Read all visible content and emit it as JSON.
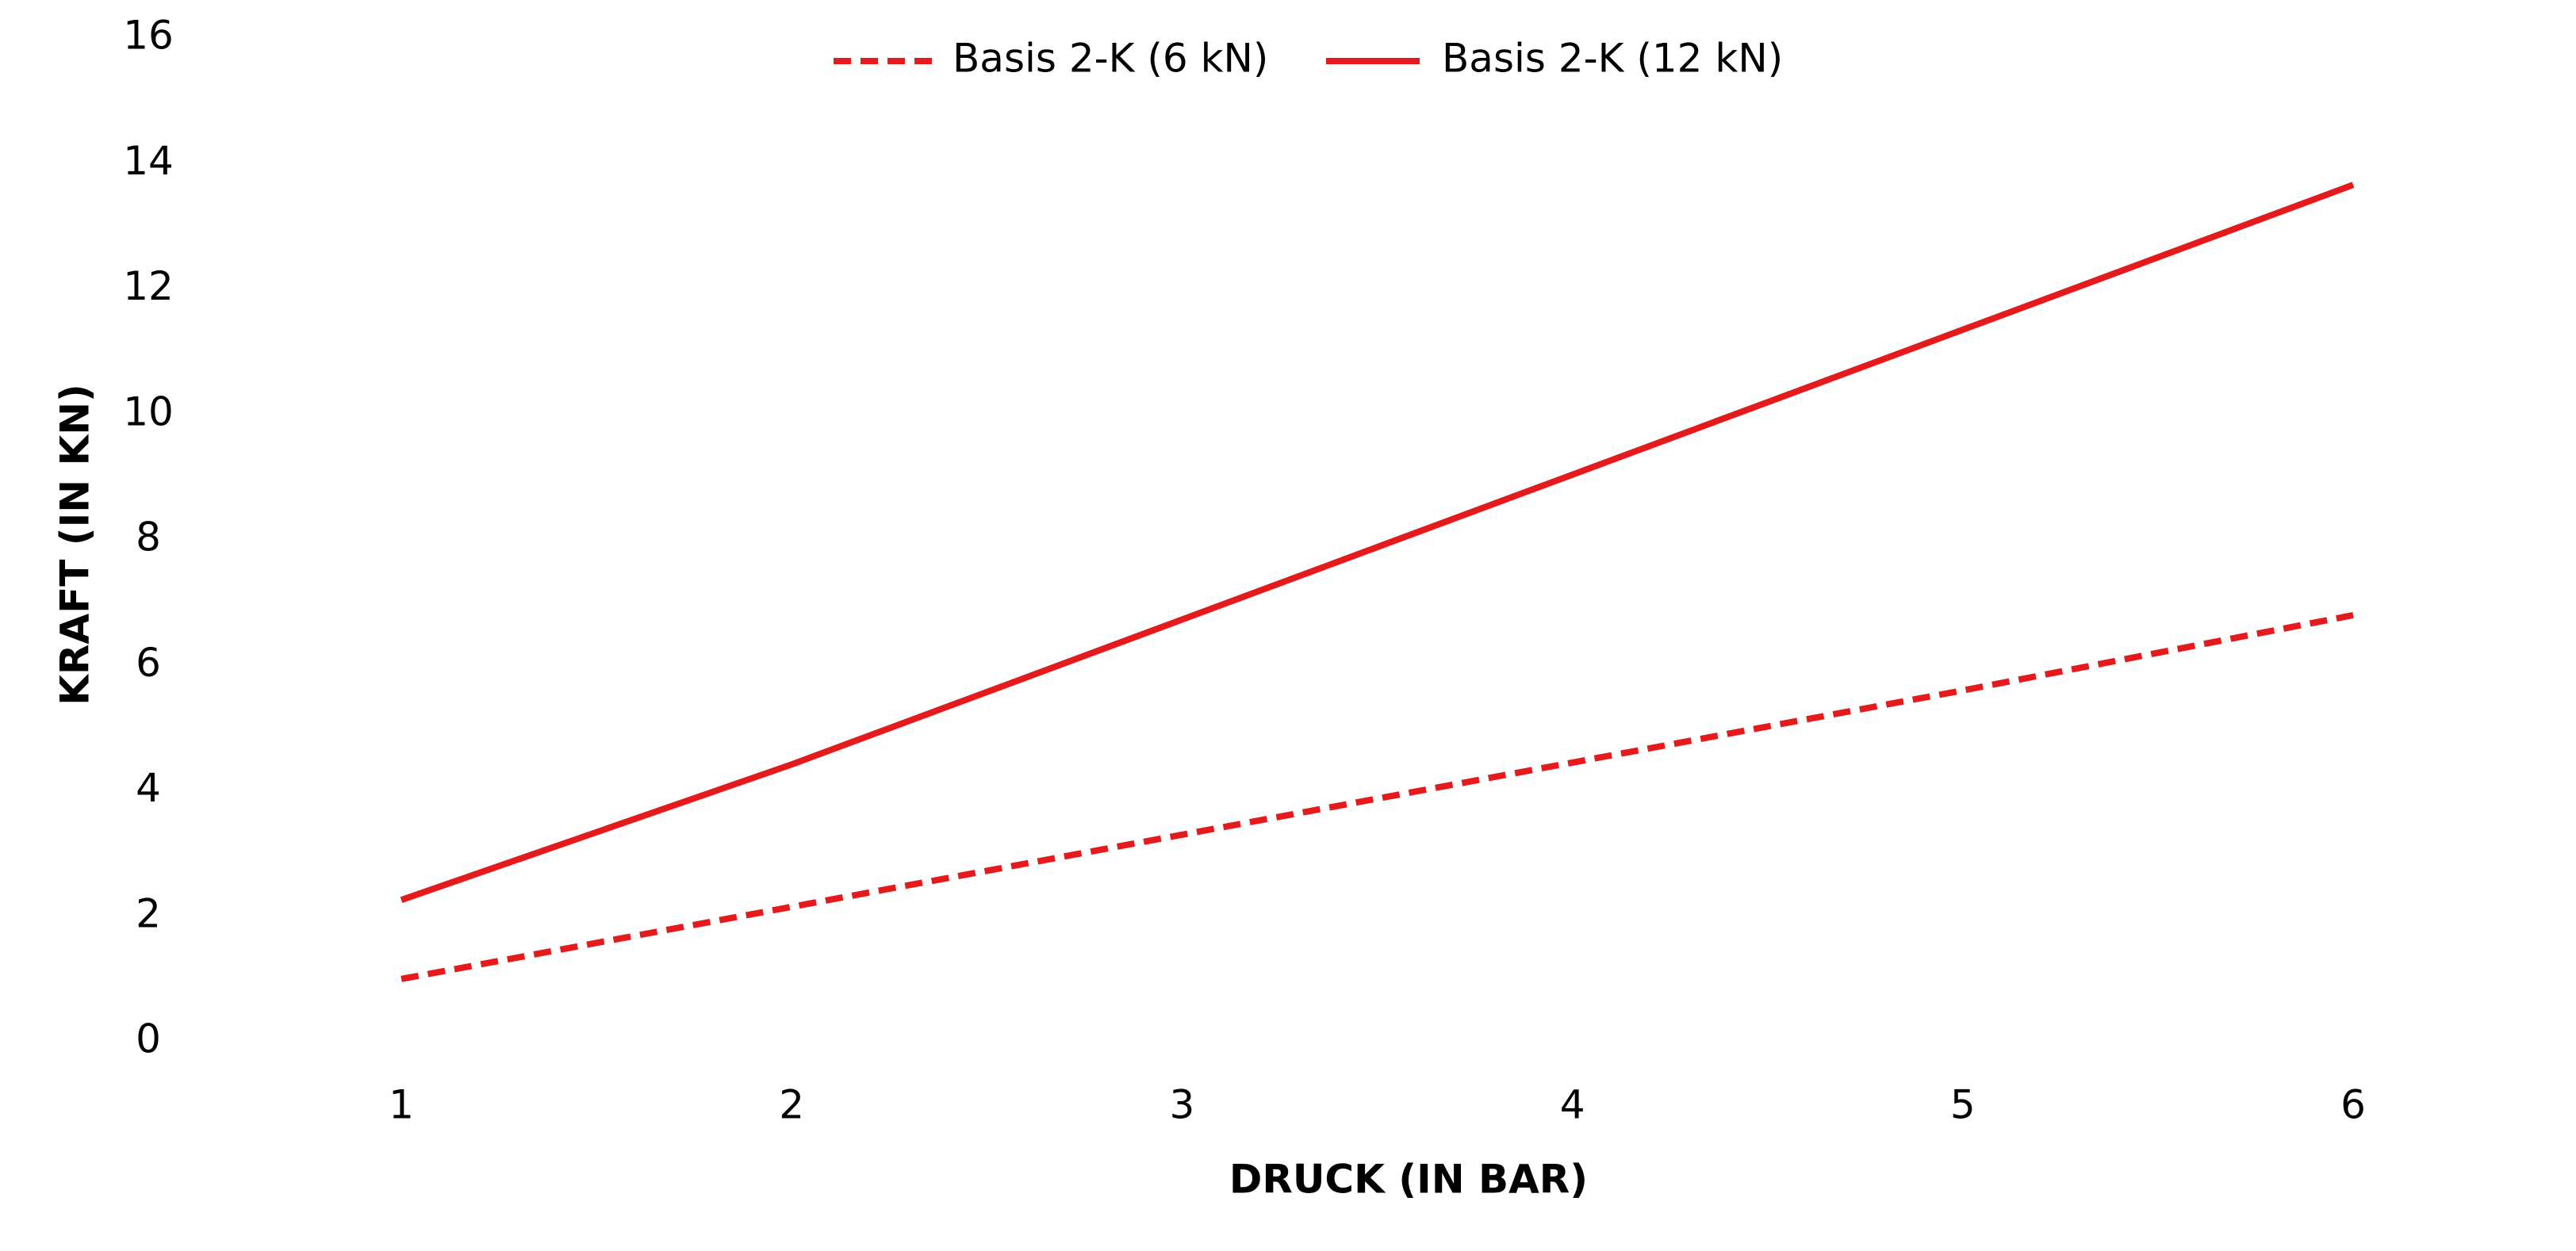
{
  "chart_data": {
    "type": "line",
    "x_label": "DRUCK (IN BAR)",
    "y_label": "KRAFT (IN KN)",
    "x": [
      1,
      2,
      3,
      4,
      5,
      6
    ],
    "series": [
      {
        "name": "Basis 2-K (6 kN)",
        "color": "#e41a1c",
        "dash": "dashed",
        "values": [
          1.0,
          2.15,
          3.3,
          4.45,
          5.6,
          6.8
        ]
      },
      {
        "name": "Basis 2-K (12 kN)",
        "color": "#e41a1c",
        "dash": "solid",
        "values": [
          2.26,
          4.42,
          6.73,
          9.04,
          11.35,
          13.66
        ]
      }
    ],
    "xlim": [
      1,
      6
    ],
    "xticks": [
      1,
      2,
      3,
      4,
      5,
      6
    ],
    "ylim": [
      0,
      16
    ],
    "yticks": [
      0,
      2,
      4,
      6,
      8,
      10,
      12,
      14,
      16
    ],
    "grid": false,
    "legend": "top"
  }
}
